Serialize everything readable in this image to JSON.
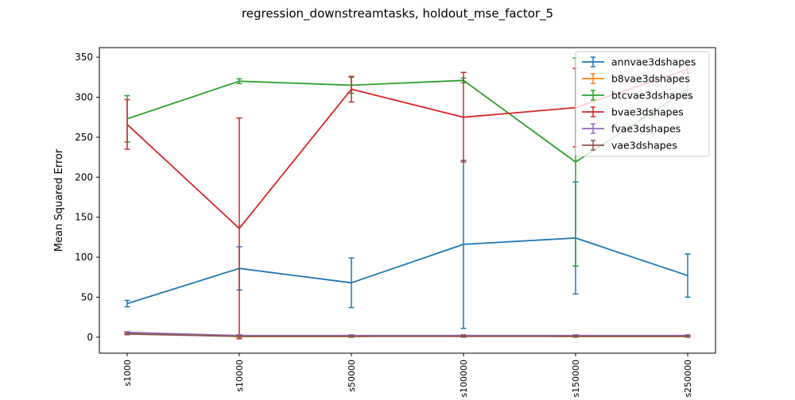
{
  "chart_data": {
    "type": "line",
    "title": "regression_downstreamtasks, holdout_mse_factor_5",
    "xlabel": "",
    "ylabel": "Mean Squared Error",
    "categories": [
      "s1000",
      "s10000",
      "s50000",
      "s100000",
      "s150000",
      "s250000"
    ],
    "ylim": [
      -20,
      362
    ],
    "yticks": [
      0,
      50,
      100,
      150,
      200,
      250,
      300,
      350
    ],
    "grid": false,
    "legend_position": "top-right",
    "series": [
      {
        "name": "annvae3dshapes",
        "color": "#1f77b4",
        "values": [
          42,
          86,
          68,
          116,
          124,
          77
        ],
        "err": [
          4,
          27,
          31,
          105,
          70,
          27
        ]
      },
      {
        "name": "b8vae3dshapes",
        "color": "#ff7f0e",
        "values": [
          5,
          1,
          1,
          2,
          1,
          1
        ],
        "err": [
          1,
          1,
          1,
          1,
          1,
          1
        ]
      },
      {
        "name": "btcvae3dshapes",
        "color": "#2ca02c",
        "values": [
          273,
          320,
          315,
          321,
          219,
          310
        ],
        "err": [
          29,
          3,
          10,
          3,
          130,
          10
        ]
      },
      {
        "name": "bvae3dshapes",
        "color": "#d62728",
        "values": [
          266,
          136,
          310,
          275,
          287,
          335
        ],
        "err": [
          31,
          138,
          16,
          56,
          49,
          5
        ]
      },
      {
        "name": "fvae3dshapes",
        "color": "#9467bd",
        "values": [
          6,
          2,
          2,
          2,
          2,
          2
        ],
        "err": [
          1,
          1,
          1,
          1,
          1,
          1
        ]
      },
      {
        "name": "vae3dshapes",
        "color": "#8c564b",
        "values": [
          4,
          1,
          1,
          1,
          1,
          1
        ],
        "err": [
          1,
          1,
          1,
          1,
          1,
          1
        ]
      }
    ]
  }
}
